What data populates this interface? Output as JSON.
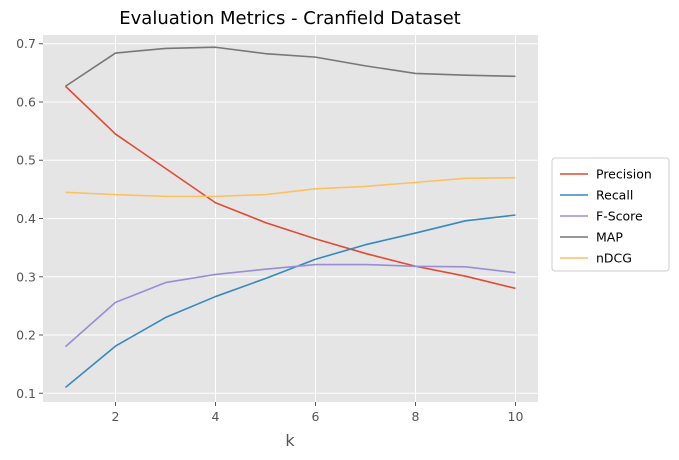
{
  "chart_data": {
    "type": "line",
    "title": "Evaluation Metrics - Cranfield Dataset",
    "xlabel": "k",
    "ylabel": "",
    "x": [
      1,
      2,
      3,
      4,
      5,
      6,
      7,
      8,
      9,
      10
    ],
    "xlim": [
      0.55,
      10.45
    ],
    "ylim": [
      0.085,
      0.715
    ],
    "xticks": [
      2,
      4,
      6,
      8,
      10
    ],
    "yticks": [
      0.1,
      0.2,
      0.3,
      0.4,
      0.5,
      0.6,
      0.7
    ],
    "grid": true,
    "legend_position": "right",
    "series": [
      {
        "name": "Precision",
        "color": "#E24A33",
        "values": [
          0.627,
          0.545,
          0.486,
          0.427,
          0.393,
          0.365,
          0.34,
          0.318,
          0.301,
          0.28
        ]
      },
      {
        "name": "Recall",
        "color": "#348ABD",
        "values": [
          0.11,
          0.181,
          0.23,
          0.266,
          0.297,
          0.33,
          0.355,
          0.375,
          0.396,
          0.406
        ]
      },
      {
        "name": "F-Score",
        "color": "#988ED5",
        "values": [
          0.18,
          0.256,
          0.29,
          0.304,
          0.313,
          0.321,
          0.321,
          0.318,
          0.317,
          0.307
        ]
      },
      {
        "name": "MAP",
        "color": "#777777",
        "values": [
          0.627,
          0.684,
          0.692,
          0.694,
          0.683,
          0.677,
          0.662,
          0.649,
          0.646,
          0.644
        ]
      },
      {
        "name": "nDCG",
        "color": "#FBC15E",
        "values": [
          0.445,
          0.441,
          0.438,
          0.438,
          0.441,
          0.451,
          0.455,
          0.462,
          0.469,
          0.47
        ]
      }
    ]
  }
}
